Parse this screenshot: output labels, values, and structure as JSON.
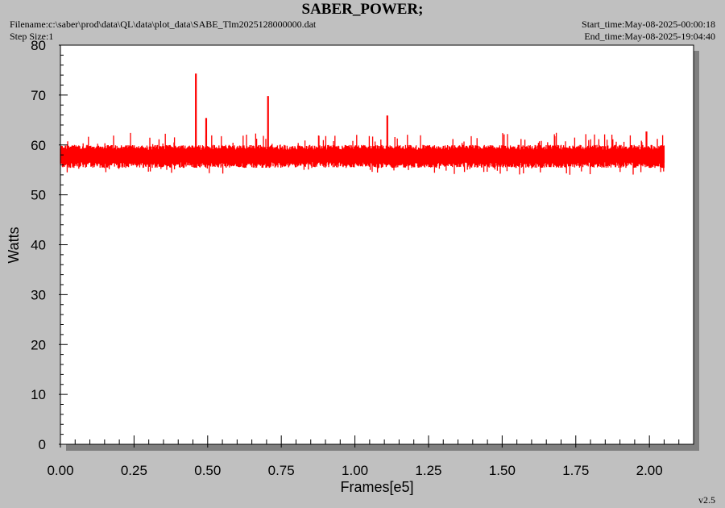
{
  "header": {
    "title": "SABER_POWER;",
    "filename": "Filename:c:\\saber\\prod\\data\\QL\\data\\plot_data\\SABE_Tlm2025128000000.dat",
    "step_size": "Step Size:1",
    "start_time": "Start_time:May-08-2025-00:00:18",
    "end_time": "End_time:May-08-2025-19:04:40"
  },
  "footer": {
    "version": "v2.5"
  },
  "colors": {
    "background": "#c0c0c0",
    "plot_area": "#ffffff",
    "shadow": "#7f7f7f",
    "series": "#ff0000",
    "axis": "#000000"
  },
  "chart_data": {
    "type": "line",
    "title": "SABER_POWER;",
    "xlabel": "Frames[e5]",
    "ylabel": "Watts",
    "xlim": [
      0,
      2.15
    ],
    "ylim": [
      0,
      80
    ],
    "x_ticks": [
      "0.00",
      "0.25",
      "0.50",
      "0.75",
      "1.00",
      "1.25",
      "1.50",
      "1.75",
      "2.00"
    ],
    "x_tick_values": [
      0,
      0.25,
      0.5,
      0.75,
      1.0,
      1.25,
      1.5,
      1.75,
      2.0
    ],
    "y_ticks": [
      "0",
      "10",
      "20",
      "30",
      "40",
      "50",
      "60",
      "70",
      "80"
    ],
    "y_tick_values": [
      0,
      10,
      20,
      30,
      40,
      50,
      60,
      70,
      80
    ],
    "grid": false,
    "series": [
      {
        "color": "#ff0000",
        "x_range": [
          0,
          2.05
        ],
        "band_min": 54,
        "band_max": 62.5,
        "typical_low": 56,
        "typical_high": 59.5,
        "spikes": [
          {
            "x": 0.46,
            "y": 74.3
          },
          {
            "x": 0.495,
            "y": 65.4
          },
          {
            "x": 0.705,
            "y": 69.8
          },
          {
            "x": 1.11,
            "y": 65.9
          },
          {
            "x": 1.99,
            "y": 62.7
          }
        ]
      }
    ]
  }
}
